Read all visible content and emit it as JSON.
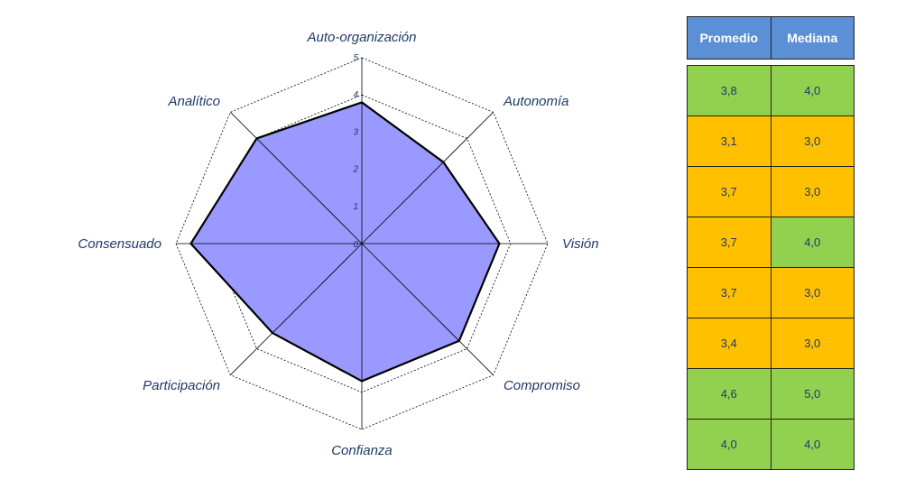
{
  "chart_data": {
    "type": "radar",
    "axes": [
      "Auto-organización",
      "Autonomía",
      "Visión",
      "Compromiso",
      "Confianza",
      "Participación",
      "Consensuado",
      "Analítico"
    ],
    "series": [
      {
        "values": [
          3.8,
          3.1,
          3.7,
          3.7,
          3.7,
          3.4,
          4.6,
          4.0
        ]
      }
    ],
    "range": [
      0,
      5
    ],
    "ticks": [
      "0",
      "1",
      "2",
      "3",
      "4",
      "5"
    ],
    "colors": {
      "fill": "#9999ff",
      "outline": "#000000",
      "grid": "#000000"
    }
  },
  "table": {
    "headers": [
      "Promedio",
      "Mediana"
    ],
    "rows": [
      {
        "promedio": "3,8",
        "mediana": "4,0",
        "promedio_color": "green",
        "mediana_color": "green"
      },
      {
        "promedio": "3,1",
        "mediana": "3,0",
        "promedio_color": "orange",
        "mediana_color": "orange"
      },
      {
        "promedio": "3,7",
        "mediana": "3,0",
        "promedio_color": "orange",
        "mediana_color": "orange"
      },
      {
        "promedio": "3,7",
        "mediana": "4,0",
        "promedio_color": "orange",
        "mediana_color": "green"
      },
      {
        "promedio": "3,7",
        "mediana": "3,0",
        "promedio_color": "orange",
        "mediana_color": "orange"
      },
      {
        "promedio": "3,4",
        "mediana": "3,0",
        "promedio_color": "orange",
        "mediana_color": "orange"
      },
      {
        "promedio": "4,6",
        "mediana": "5,0",
        "promedio_color": "green",
        "mediana_color": "green"
      },
      {
        "promedio": "4,0",
        "mediana": "4,0",
        "promedio_color": "green",
        "mediana_color": "green"
      }
    ],
    "colors": {
      "header": "#5b8fd6",
      "green": "#92d050",
      "orange": "#ffc000"
    }
  }
}
